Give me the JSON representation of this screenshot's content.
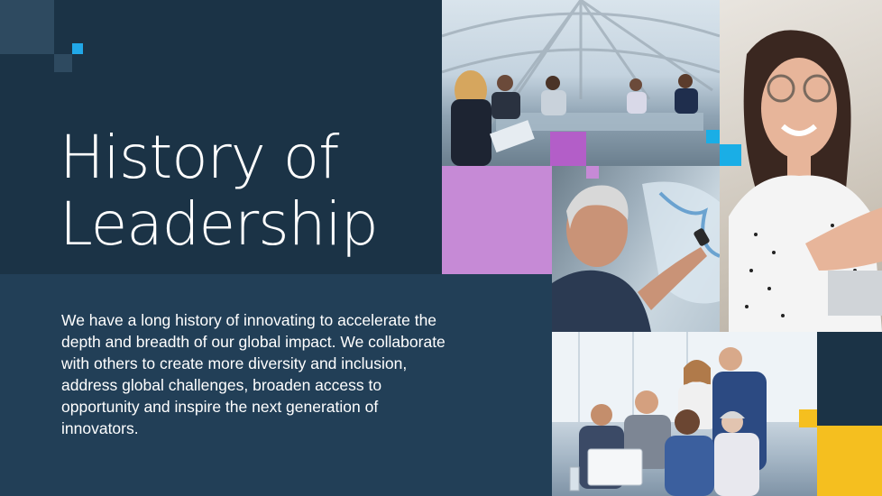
{
  "title": {
    "line1": "History of",
    "line2": "Leadership"
  },
  "body": "We have a long history of innovating to accelerate the depth and breadth of our global impact. We collaborate with others to create more diversity and inclusion, address global challenges, broaden access to opportunity and inspire the next generation of innovators.",
  "colors": {
    "navy": "#1b3346",
    "panel_blue": "#223f57",
    "purple": "#c68ad6",
    "cyan": "#1aaee6",
    "yellow": "#f5bf1f",
    "text": "#ffffff"
  }
}
